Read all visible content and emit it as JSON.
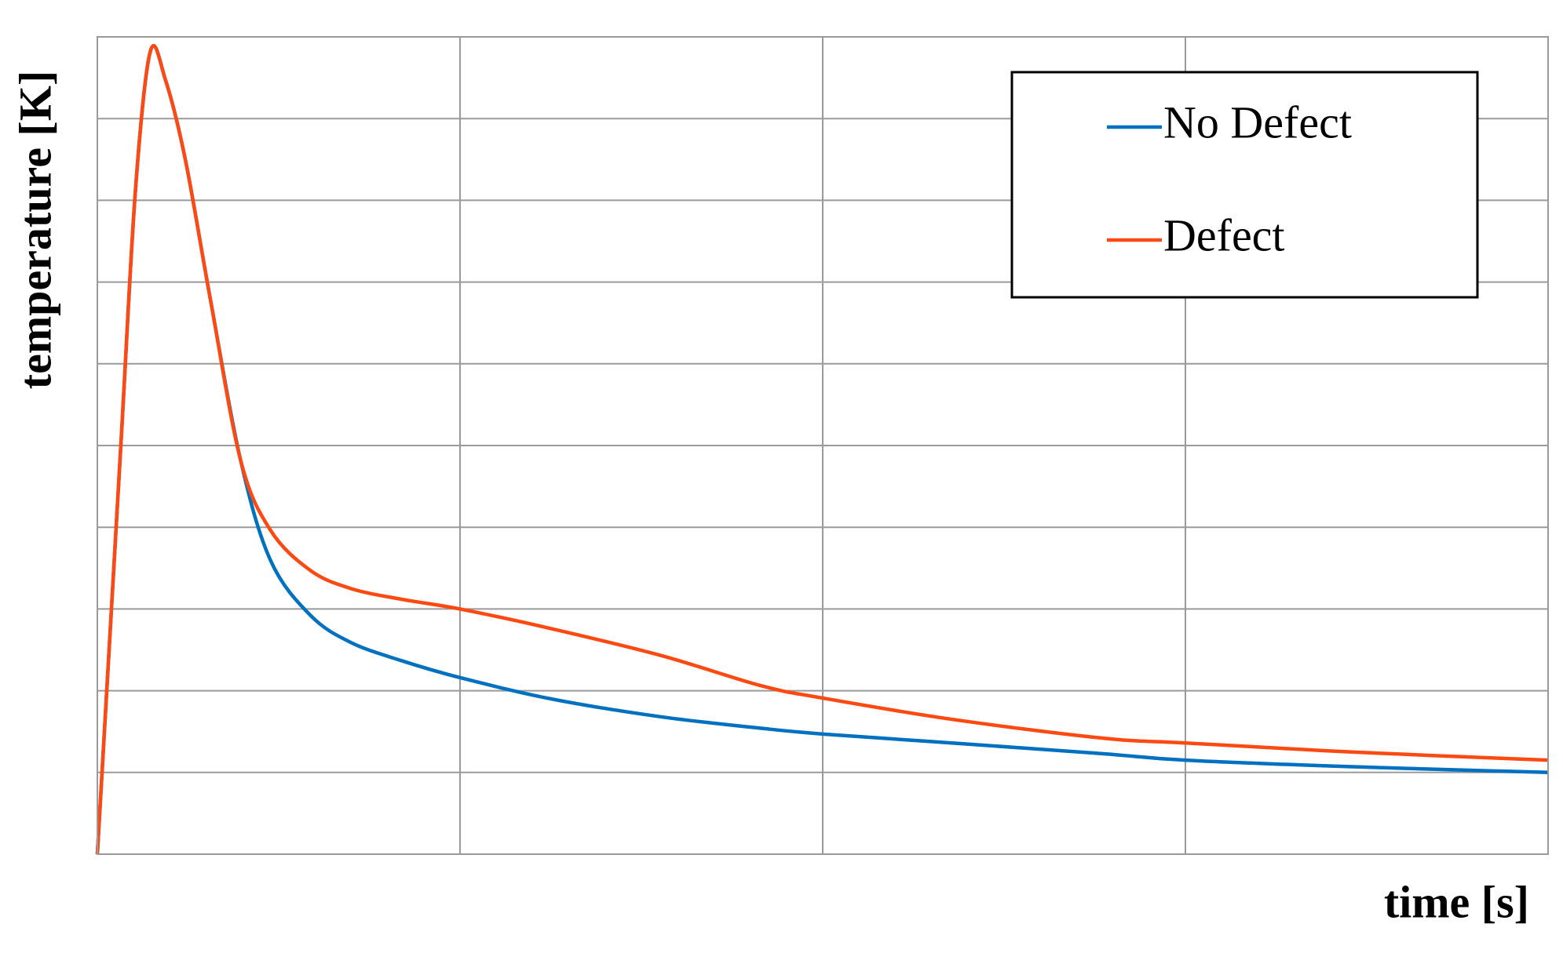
{
  "chart_data": {
    "type": "line",
    "xlabel": "time [s]",
    "ylabel": "temperature [K]",
    "x": [
      0,
      0.064,
      0.105,
      0.146,
      0.188,
      0.243,
      0.312,
      0.395,
      0.478,
      0.588,
      0.699,
      0.837,
      1.0,
      1.251,
      1.555,
      1.831,
      2.0,
      2.356,
      2.771,
      3.0,
      3.46,
      4.0
    ],
    "series": [
      {
        "name": "No Defect",
        "color": "#0070c0",
        "values": [
          0,
          4.94,
          8.12,
          9.82,
          9.47,
          8.49,
          6.78,
          4.82,
          3.59,
          2.92,
          2.59,
          2.37,
          2.16,
          1.9,
          1.68,
          1.54,
          1.47,
          1.36,
          1.23,
          1.15,
          1.07,
          1.0
        ]
      },
      {
        "name": "Defect",
        "color": "#fe4a12",
        "values": [
          0,
          4.94,
          8.12,
          9.82,
          9.47,
          8.49,
          6.78,
          4.82,
          3.96,
          3.47,
          3.25,
          3.12,
          3.0,
          2.76,
          2.43,
          2.06,
          1.91,
          1.65,
          1.42,
          1.36,
          1.25,
          1.15
        ]
      }
    ],
    "xlim": [
      0,
      4
    ],
    "ylim": [
      0,
      10
    ],
    "xticks": [
      0,
      1,
      2,
      3,
      4
    ],
    "yticks": [
      0,
      1,
      2,
      3,
      4,
      5,
      6,
      7,
      8,
      9,
      10
    ],
    "tick_labels": false,
    "grid": true,
    "legend": "upper right"
  }
}
